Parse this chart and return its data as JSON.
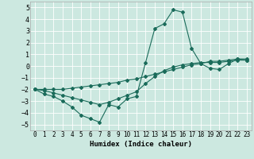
{
  "xlabel": "Humidex (Indice chaleur)",
  "ylabel": "",
  "xlim": [
    -0.5,
    23.5
  ],
  "ylim": [
    -5.5,
    5.5
  ],
  "yticks": [
    -5,
    -4,
    -3,
    -2,
    -1,
    0,
    1,
    2,
    3,
    4,
    5
  ],
  "xticks": [
    0,
    1,
    2,
    3,
    4,
    5,
    6,
    7,
    8,
    9,
    10,
    11,
    12,
    13,
    14,
    15,
    16,
    17,
    18,
    19,
    20,
    21,
    22,
    23
  ],
  "bg_color": "#cce8e0",
  "grid_color": "#ffffff",
  "line_color": "#1a6b5a",
  "line1_x": [
    0,
    1,
    2,
    3,
    4,
    5,
    6,
    7,
    8,
    9,
    10,
    11,
    12,
    13,
    14,
    15,
    16,
    17,
    18,
    19,
    20,
    21,
    22,
    23
  ],
  "line1_y": [
    -2.0,
    -2.4,
    -2.6,
    -3.0,
    -3.5,
    -4.2,
    -4.5,
    -4.8,
    -3.3,
    -3.5,
    -2.8,
    -2.6,
    0.3,
    3.2,
    3.6,
    4.8,
    4.6,
    1.5,
    0.2,
    -0.2,
    -0.3,
    0.2,
    0.6,
    0.5
  ],
  "line2_x": [
    0,
    1,
    2,
    3,
    4,
    5,
    6,
    7,
    8,
    9,
    10,
    11,
    12,
    13,
    14,
    15,
    16,
    17,
    18,
    19,
    20,
    21,
    22,
    23
  ],
  "line2_y": [
    -2.0,
    -2.0,
    -2.0,
    -2.0,
    -1.9,
    -1.8,
    -1.7,
    -1.6,
    -1.5,
    -1.4,
    -1.2,
    -1.1,
    -0.9,
    -0.7,
    -0.5,
    -0.3,
    -0.1,
    0.1,
    0.2,
    0.4,
    0.4,
    0.5,
    0.6,
    0.6
  ],
  "line3_x": [
    0,
    1,
    2,
    3,
    4,
    5,
    6,
    7,
    8,
    9,
    10,
    11,
    12,
    13,
    14,
    15,
    16,
    17,
    18,
    19,
    20,
    21,
    22,
    23
  ],
  "line3_y": [
    -2.0,
    -2.1,
    -2.3,
    -2.5,
    -2.7,
    -2.9,
    -3.1,
    -3.3,
    -3.1,
    -2.8,
    -2.5,
    -2.2,
    -1.5,
    -0.9,
    -0.4,
    -0.1,
    0.1,
    0.2,
    0.3,
    0.3,
    0.3,
    0.4,
    0.5,
    0.5
  ],
  "fontsize_label": 6.5,
  "fontsize_tick": 5.5,
  "marker": "D",
  "markersize": 2.0,
  "linewidth": 0.8
}
